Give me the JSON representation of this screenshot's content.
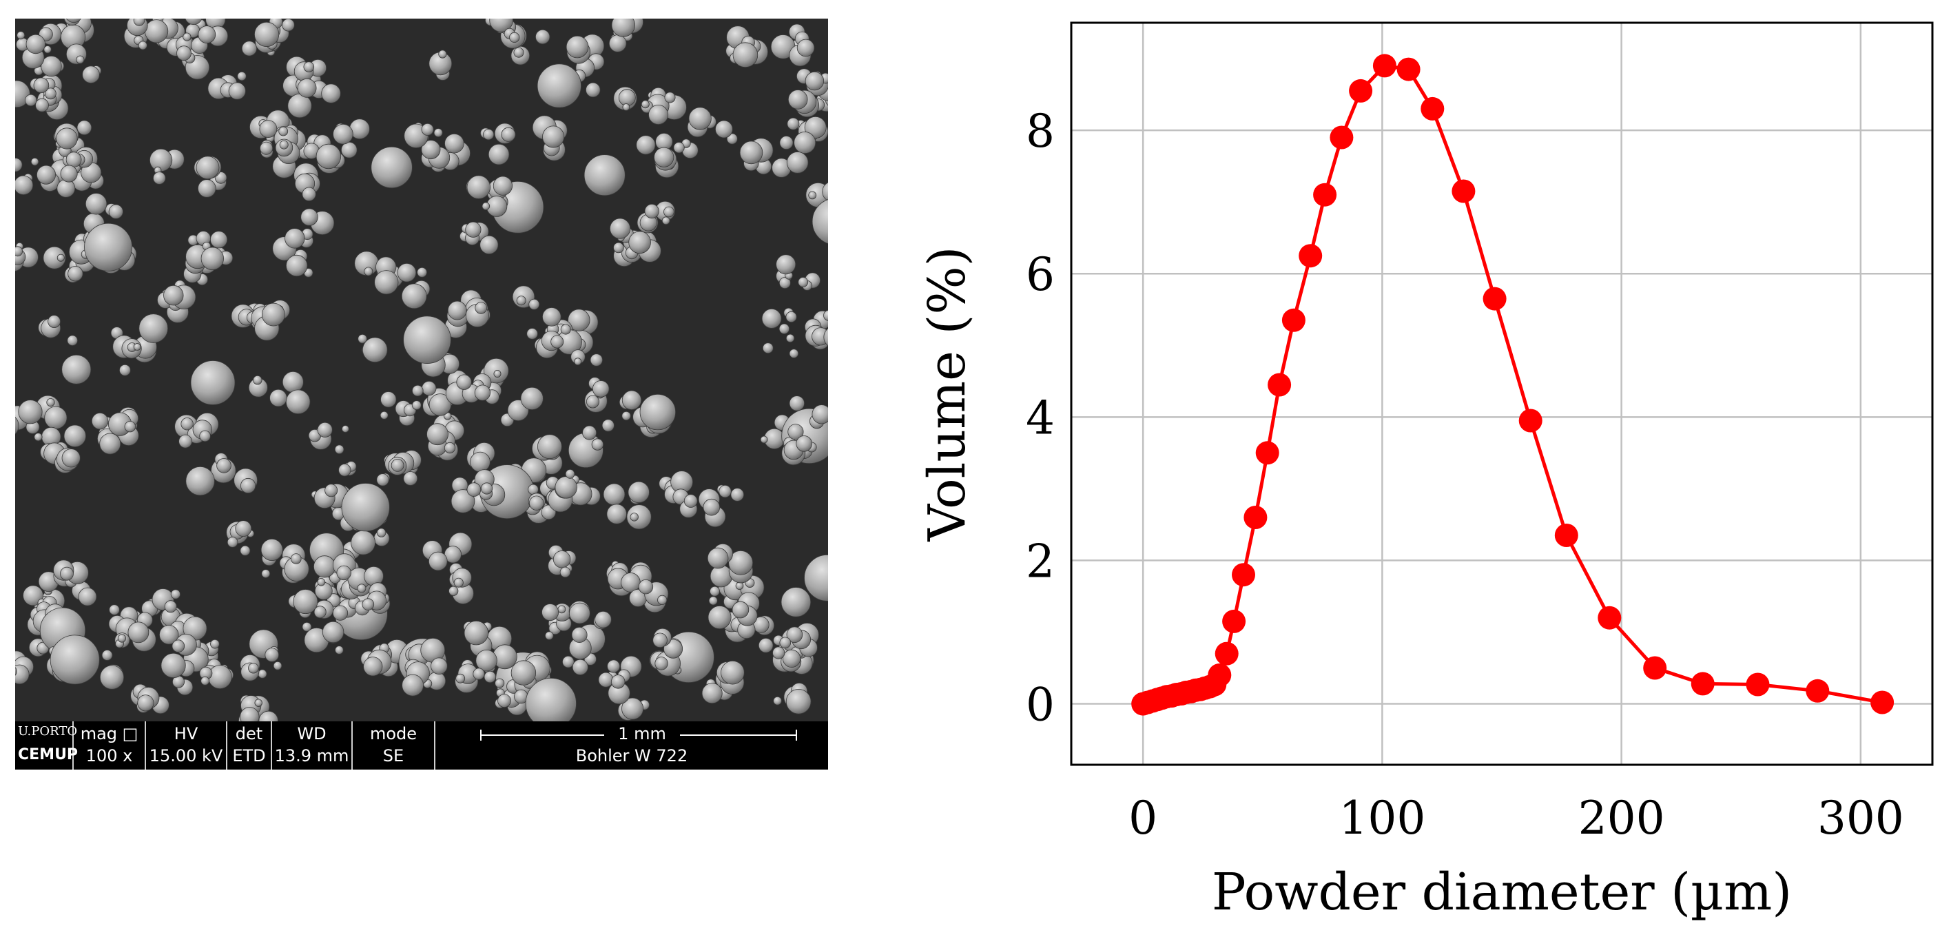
{
  "sem": {
    "logo_top": "U.PORTO",
    "logo_bottom": "CEMUP",
    "mag_label": "mag □",
    "mag_value": "100 x",
    "hv_label": "HV",
    "hv_value": "15.00 kV",
    "det_label": "det",
    "det_value": "ETD",
    "wd_label": "WD",
    "wd_value": "13.9 mm",
    "mode_label": "mode",
    "mode_value": "SE",
    "scale_label": "1 mm",
    "sample_label": "Bohler W 722"
  },
  "chart_data": {
    "type": "line",
    "xlabel": "Powder diameter (µm)",
    "ylabel": "Volume (%)",
    "xlim": [
      -30,
      330
    ],
    "ylim": [
      -0.85,
      9.5
    ],
    "xticks": [
      0,
      100,
      200,
      300
    ],
    "yticks": [
      0,
      2,
      4,
      6,
      8
    ],
    "grid": true,
    "color": "#ff0000",
    "series": [
      {
        "x": [
          0,
          2,
          4,
          6,
          8,
          10,
          12,
          14,
          16,
          18,
          20,
          22,
          24,
          26,
          28,
          30,
          32,
          35,
          38,
          42,
          47,
          52,
          57,
          63,
          70,
          76,
          83,
          91,
          101,
          111,
          121,
          134,
          147,
          162,
          177,
          195,
          214,
          234,
          257,
          282,
          309
        ],
        "y": [
          0.0,
          0.02,
          0.04,
          0.06,
          0.08,
          0.1,
          0.11,
          0.13,
          0.14,
          0.16,
          0.17,
          0.19,
          0.2,
          0.22,
          0.24,
          0.27,
          0.4,
          0.7,
          1.15,
          1.8,
          2.6,
          3.5,
          4.45,
          5.35,
          6.25,
          7.1,
          7.9,
          8.55,
          8.9,
          8.85,
          8.3,
          7.15,
          5.65,
          3.95,
          2.35,
          1.2,
          0.5,
          0.28,
          0.27,
          0.18,
          0.02
        ]
      }
    ]
  }
}
